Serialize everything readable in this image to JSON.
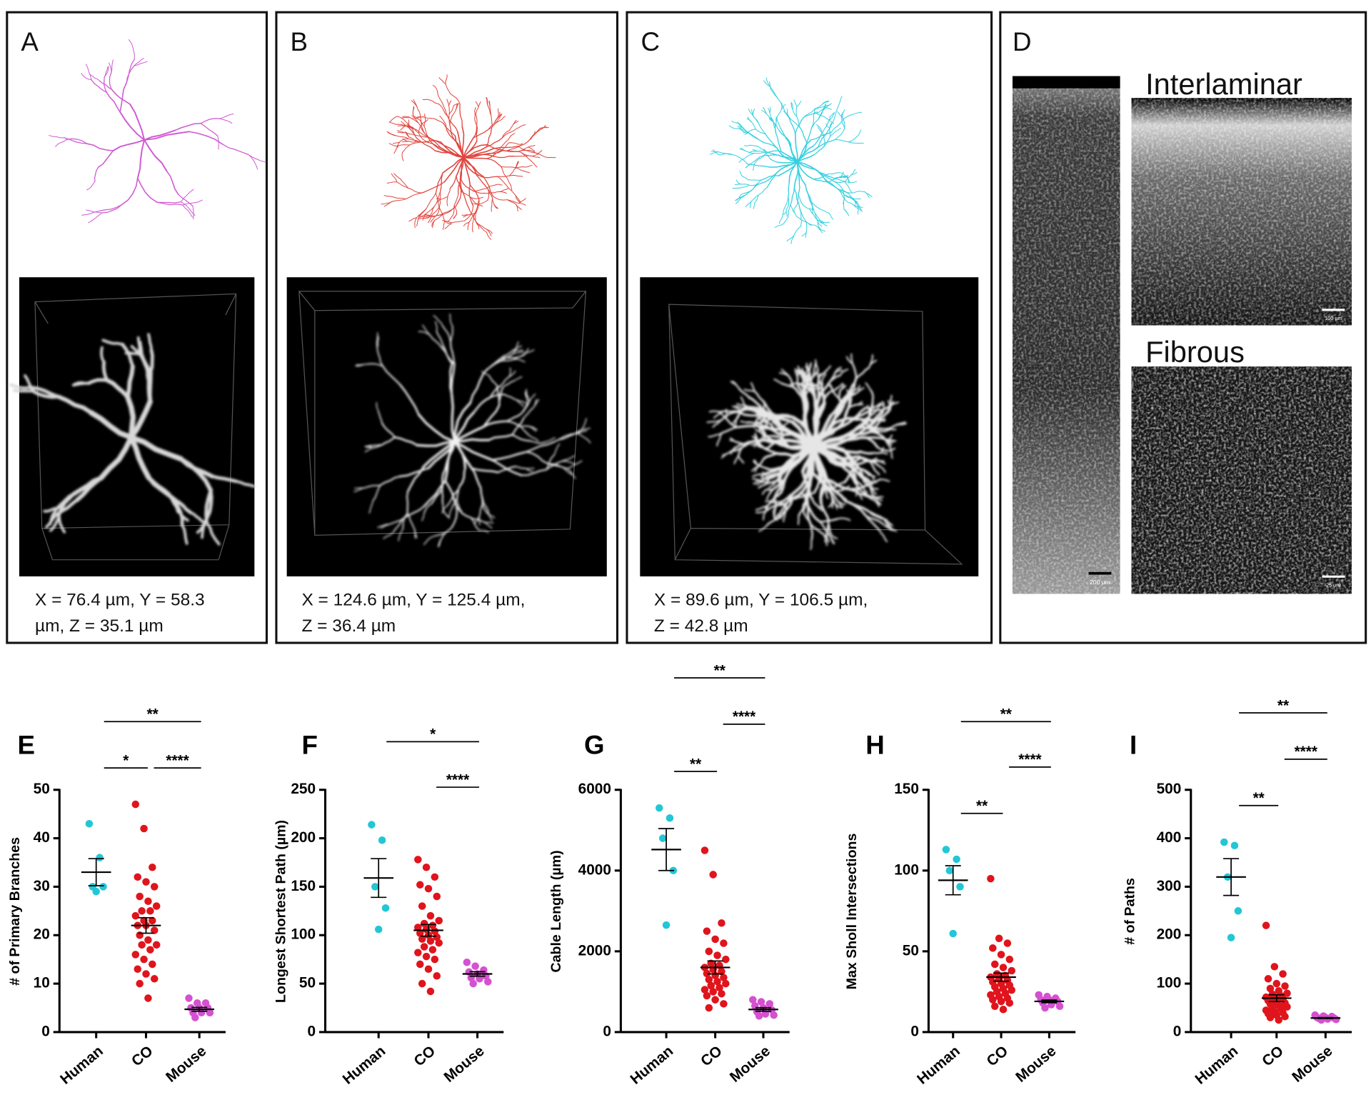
{
  "panels": {
    "A": {
      "letter": "A",
      "caption": [
        "X = 76.4 µm, Y = 58.3",
        "µm, Z = 35.1 µm"
      ]
    },
    "B": {
      "letter": "B",
      "caption": [
        "X = 124.6 µm, Y = 125.4 µm,",
        "Z = 36.4 µm"
      ]
    },
    "C": {
      "letter": "C",
      "caption": [
        "X = 89.6 µm, Y = 106.5 µm,",
        "Z = 42.8 µm"
      ]
    },
    "D": {
      "letter": "D",
      "labels": [
        "Interlaminar",
        "Fibrous"
      ],
      "scale_bars": [
        "200 µm",
        "100 µm",
        "25 µm"
      ]
    }
  },
  "chart_data": [
    {
      "type": "dot",
      "panel": "E",
      "ylabel": "# of Primary Branches",
      "categories": [
        "Human",
        "CO",
        "Mouse"
      ],
      "colors": [
        "#22c7d6",
        "#e0141c",
        "#d451d0"
      ],
      "points": [
        [
          43,
          36,
          30,
          30,
          29
        ],
        [
          47,
          42,
          34,
          32,
          31,
          30,
          28,
          27,
          26,
          25,
          25,
          24,
          23,
          23,
          22,
          22,
          21,
          20,
          19,
          18,
          18,
          17,
          16,
          15,
          14,
          13,
          12,
          11,
          10,
          7
        ],
        [
          7,
          6,
          6,
          5,
          5,
          5,
          4,
          4,
          4,
          3
        ]
      ],
      "means": [
        33,
        22,
        4.7
      ],
      "sems": [
        2.8,
        1.6,
        0.4
      ],
      "ylim": [
        0,
        50
      ],
      "yticks": [
        0,
        10,
        20,
        30,
        40,
        50
      ],
      "comparisons": [
        {
          "pair": [
            0,
            1
          ],
          "label": "*"
        },
        {
          "pair": [
            1,
            2
          ],
          "label": "****"
        },
        {
          "pair": [
            0,
            2
          ],
          "label": "**"
        }
      ]
    },
    {
      "type": "dot",
      "panel": "F",
      "ylabel": "Longest Shortest Path (µm)",
      "categories": [
        "Human",
        "CO",
        "Mouse"
      ],
      "colors": [
        "#22c7d6",
        "#e0141c",
        "#d451d0"
      ],
      "points": [
        [
          214,
          198,
          150,
          128,
          106
        ],
        [
          178,
          170,
          160,
          152,
          148,
          140,
          130,
          120,
          115,
          112,
          110,
          108,
          106,
          104,
          102,
          100,
          98,
          96,
          94,
          92,
          88,
          85,
          82,
          78,
          75,
          70,
          65,
          58,
          50,
          42
        ],
        [
          72,
          68,
          64,
          62,
          60,
          58,
          56,
          55,
          52,
          50
        ]
      ],
      "means": [
        159,
        105,
        60
      ],
      "sems": [
        20,
        6,
        2.3
      ],
      "ylim": [
        0,
        250
      ],
      "yticks": [
        0,
        50,
        100,
        150,
        200,
        250
      ],
      "comparisons": [
        {
          "pair": [
            0,
            2
          ],
          "label": "*"
        },
        {
          "pair": [
            1,
            2
          ],
          "label": "****"
        }
      ]
    },
    {
      "type": "dot",
      "panel": "G",
      "ylabel": "Cable Length (µm)",
      "categories": [
        "Human",
        "CO",
        "Mouse"
      ],
      "colors": [
        "#22c7d6",
        "#e0141c",
        "#d451d0"
      ],
      "points": [
        [
          5550,
          5300,
          4800,
          4000,
          2650
        ],
        [
          4500,
          3900,
          2700,
          2500,
          2300,
          2200,
          2000,
          1900,
          1800,
          1700,
          1650,
          1600,
          1550,
          1500,
          1450,
          1400,
          1350,
          1300,
          1250,
          1200,
          1150,
          1100,
          1050,
          1000,
          950,
          900,
          800,
          700,
          600
        ],
        [
          800,
          750,
          700,
          650,
          600,
          550,
          500,
          450,
          420,
          400
        ]
      ],
      "means": [
        4520,
        1600,
        560
      ],
      "sems": [
        520,
        160,
        45
      ],
      "ylim": [
        0,
        6000
      ],
      "yticks": [
        0,
        2000,
        4000,
        6000
      ],
      "comparisons": [
        {
          "pair": [
            0,
            1
          ],
          "label": "**"
        },
        {
          "pair": [
            1,
            2
          ],
          "label": "****"
        },
        {
          "pair": [
            0,
            2
          ],
          "label": "**"
        }
      ]
    },
    {
      "type": "dot",
      "panel": "H",
      "ylabel": "Max Sholl Intersections",
      "categories": [
        "Human",
        "CO",
        "Mouse"
      ],
      "colors": [
        "#22c7d6",
        "#e0141c",
        "#d451d0"
      ],
      "points": [
        [
          113,
          107,
          100,
          90,
          61
        ],
        [
          95,
          58,
          55,
          52,
          48,
          45,
          42,
          40,
          38,
          36,
          35,
          34,
          33,
          32,
          31,
          30,
          29,
          28,
          27,
          26,
          25,
          24,
          23,
          22,
          21,
          20,
          19,
          18,
          16,
          14
        ],
        [
          23,
          22,
          21,
          20,
          20,
          19,
          18,
          17,
          16,
          15
        ]
      ],
      "means": [
        94,
        34,
        19
      ],
      "sems": [
        9,
        2.5,
        0.8
      ],
      "ylim": [
        0,
        150
      ],
      "yticks": [
        0,
        50,
        100,
        150
      ],
      "comparisons": [
        {
          "pair": [
            0,
            1
          ],
          "label": "**"
        },
        {
          "pair": [
            1,
            2
          ],
          "label": "****"
        },
        {
          "pair": [
            0,
            2
          ],
          "label": "**"
        }
      ]
    },
    {
      "type": "dot",
      "panel": "I",
      "ylabel": "# of Paths",
      "categories": [
        "Human",
        "CO",
        "Mouse"
      ],
      "colors": [
        "#22c7d6",
        "#e0141c",
        "#d451d0"
      ],
      "points": [
        [
          392,
          385,
          320,
          250,
          195
        ],
        [
          220,
          135,
          120,
          110,
          100,
          95,
          90,
          85,
          80,
          78,
          75,
          72,
          70,
          68,
          65,
          62,
          60,
          58,
          55,
          52,
          50,
          48,
          45,
          42,
          40,
          38,
          35,
          32,
          30,
          25
        ],
        [
          35,
          33,
          32,
          30,
          30,
          29,
          28,
          27,
          26,
          25
        ]
      ],
      "means": [
        320,
        70,
        29
      ],
      "sems": [
        38,
        7,
        1
      ],
      "ylim": [
        0,
        500
      ],
      "yticks": [
        0,
        100,
        200,
        300,
        400,
        500
      ],
      "comparisons": [
        {
          "pair": [
            0,
            1
          ],
          "label": "**"
        },
        {
          "pair": [
            1,
            2
          ],
          "label": "****"
        },
        {
          "pair": [
            0,
            2
          ],
          "label": "**"
        }
      ]
    }
  ]
}
